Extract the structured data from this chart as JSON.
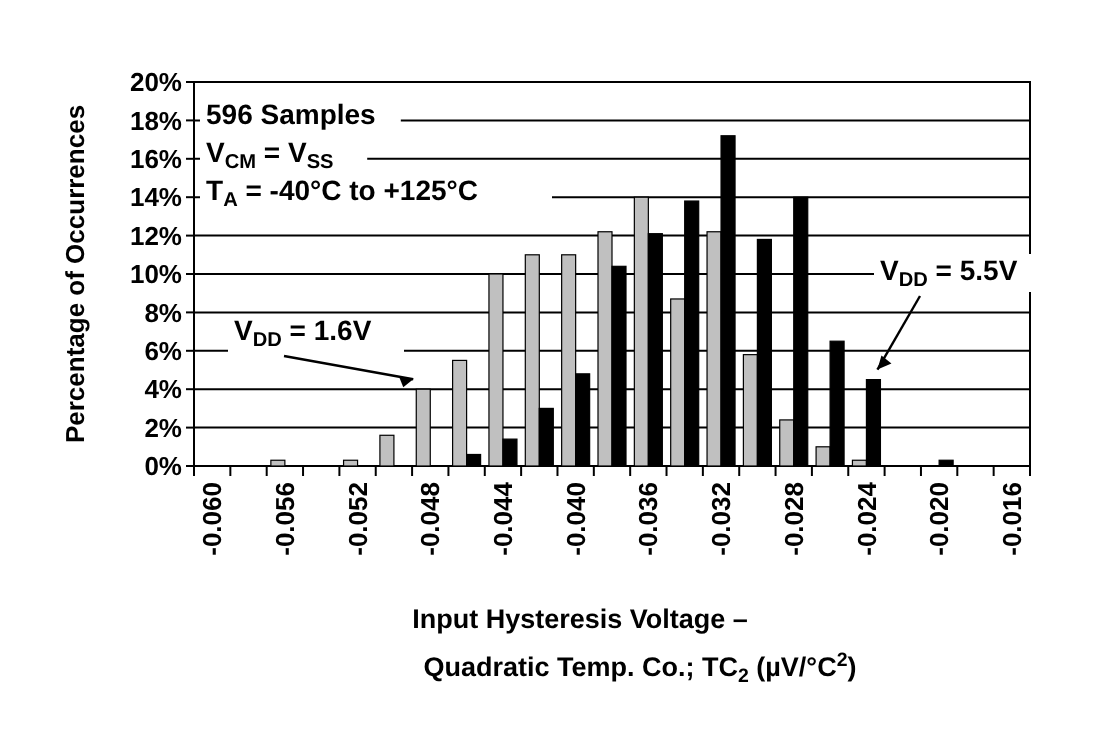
{
  "chart_data": {
    "type": "bar",
    "categories": [
      "-0.060",
      null,
      "-0.056",
      null,
      "-0.052",
      null,
      "-0.048",
      null,
      "-0.044",
      null,
      "-0.040",
      null,
      "-0.036",
      null,
      "-0.032",
      null,
      "-0.028",
      null,
      "-0.024",
      null,
      "-0.020",
      null,
      "-0.016"
    ],
    "series": [
      {
        "name": "V$_{DD}$ = 1.6V",
        "color": "#c0c0c0",
        "values": [
          0,
          0,
          0.3,
          0,
          0.3,
          1.6,
          4.0,
          5.5,
          10.0,
          11.0,
          11.0,
          12.2,
          14.0,
          8.7,
          12.2,
          5.8,
          2.4,
          1.0,
          0.3,
          0,
          0,
          0,
          0
        ]
      },
      {
        "name": "V$_{DD}$ = 5.5V",
        "color": "#000000",
        "values": [
          0,
          0,
          0,
          0,
          0,
          0,
          0,
          0.6,
          1.4,
          3.0,
          4.8,
          10.4,
          12.1,
          13.8,
          17.2,
          11.8,
          14.0,
          6.5,
          4.5,
          0,
          0.3,
          0,
          0
        ]
      }
    ],
    "xlabel": "Input Hysteresis Voltage –\nQuadratic Temp. Co.; TC$_{2}$ (µV/°C$^{2}$)",
    "ylabel": "Percentage of Occurrences",
    "annotations": [
      "596 Samples",
      "V$_{CM}$ = V$_{SS}$",
      "T$_{A}$ = -40°C to +125°C"
    ],
    "ylim": [
      0,
      20
    ],
    "yticks": [
      {
        "value": 0,
        "label": "0%"
      },
      {
        "value": 2,
        "label": "2%"
      },
      {
        "value": 4,
        "label": "4%"
      },
      {
        "value": 6,
        "label": "6%"
      },
      {
        "value": 8,
        "label": "8%"
      },
      {
        "value": 10,
        "label": "10%"
      },
      {
        "value": 12,
        "label": "12%"
      },
      {
        "value": 14,
        "label": "14%"
      },
      {
        "value": 16,
        "label": "16%"
      },
      {
        "value": 18,
        "label": "18%"
      },
      {
        "value": 20,
        "label": "20%"
      }
    ],
    "grid": "y"
  }
}
